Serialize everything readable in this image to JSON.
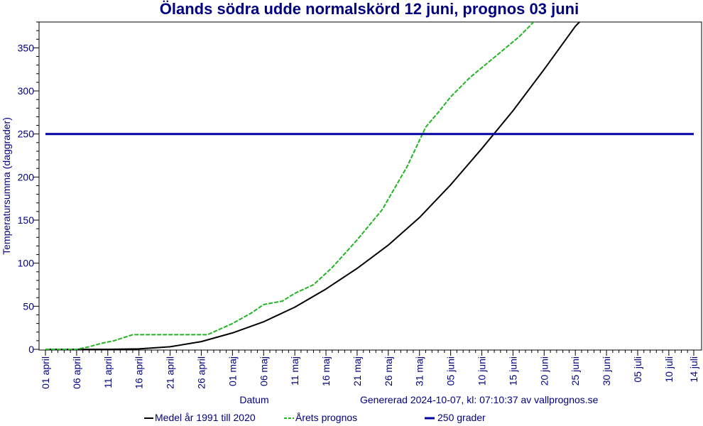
{
  "chart_data": {
    "type": "line",
    "title": "Ölands södra udde normalskörd 12 juni, prognos 03 juni",
    "xlabel": "Datum",
    "ylabel": "Temperatursumma (daggrader)",
    "ylim": [
      0,
      380
    ],
    "xlim": [
      0,
      104
    ],
    "yticks": [
      0,
      50,
      100,
      150,
      200,
      250,
      300,
      350
    ],
    "xtick_positions": [
      0,
      5,
      10,
      15,
      20,
      25,
      30,
      35,
      40,
      45,
      50,
      55,
      60,
      65,
      70,
      75,
      80,
      85,
      90,
      95,
      100,
      104
    ],
    "xtick_labels": [
      "01 april",
      "06 april",
      "11 april",
      "16 april",
      "21 april",
      "26 april",
      "01 maj",
      "06 maj",
      "11 maj",
      "16 maj",
      "21 maj",
      "26 maj",
      "31 maj",
      "05 juni",
      "10 juni",
      "15 juni",
      "20 juni",
      "25 juni",
      "30 juni",
      "05 juli",
      "10 juli",
      "14 juli"
    ],
    "grid": false,
    "legend_position": "bottom",
    "series": [
      {
        "name": "Medel år 1991 till 2020",
        "color": "#000000",
        "style": "solid",
        "x": [
          0,
          5,
          10,
          15,
          20,
          25,
          30,
          35,
          40,
          45,
          50,
          55,
          60,
          65,
          70,
          75,
          80,
          85,
          87
        ],
        "y": [
          0,
          0,
          0,
          0.5,
          3,
          9,
          19,
          32,
          49,
          70,
          94,
          121,
          153,
          191,
          233,
          277,
          325,
          375,
          390
        ]
      },
      {
        "name": "Årets prognos",
        "color": "#22b522",
        "style": "dashed",
        "x": [
          0,
          5,
          7,
          9,
          11,
          14,
          20,
          26,
          30,
          33,
          35,
          38,
          40,
          43,
          46,
          50,
          54,
          58,
          61,
          63,
          65,
          68,
          70,
          73,
          76,
          79,
          81
        ],
        "y": [
          0,
          0,
          3,
          7,
          10,
          17,
          17,
          17,
          30,
          42,
          52,
          56,
          65,
          75,
          95,
          127,
          162,
          212,
          258,
          275,
          293,
          315,
          327,
          345,
          363,
          385,
          400
        ]
      },
      {
        "name": "250 grader",
        "color": "#0000a0",
        "style": "solid",
        "x": [
          0,
          104
        ],
        "y": [
          250,
          250
        ]
      }
    ],
    "footer_left": "Datum",
    "footer_right": "Genererad 2024-10-07, kl: 07:10:37 av vallprognos.se"
  }
}
